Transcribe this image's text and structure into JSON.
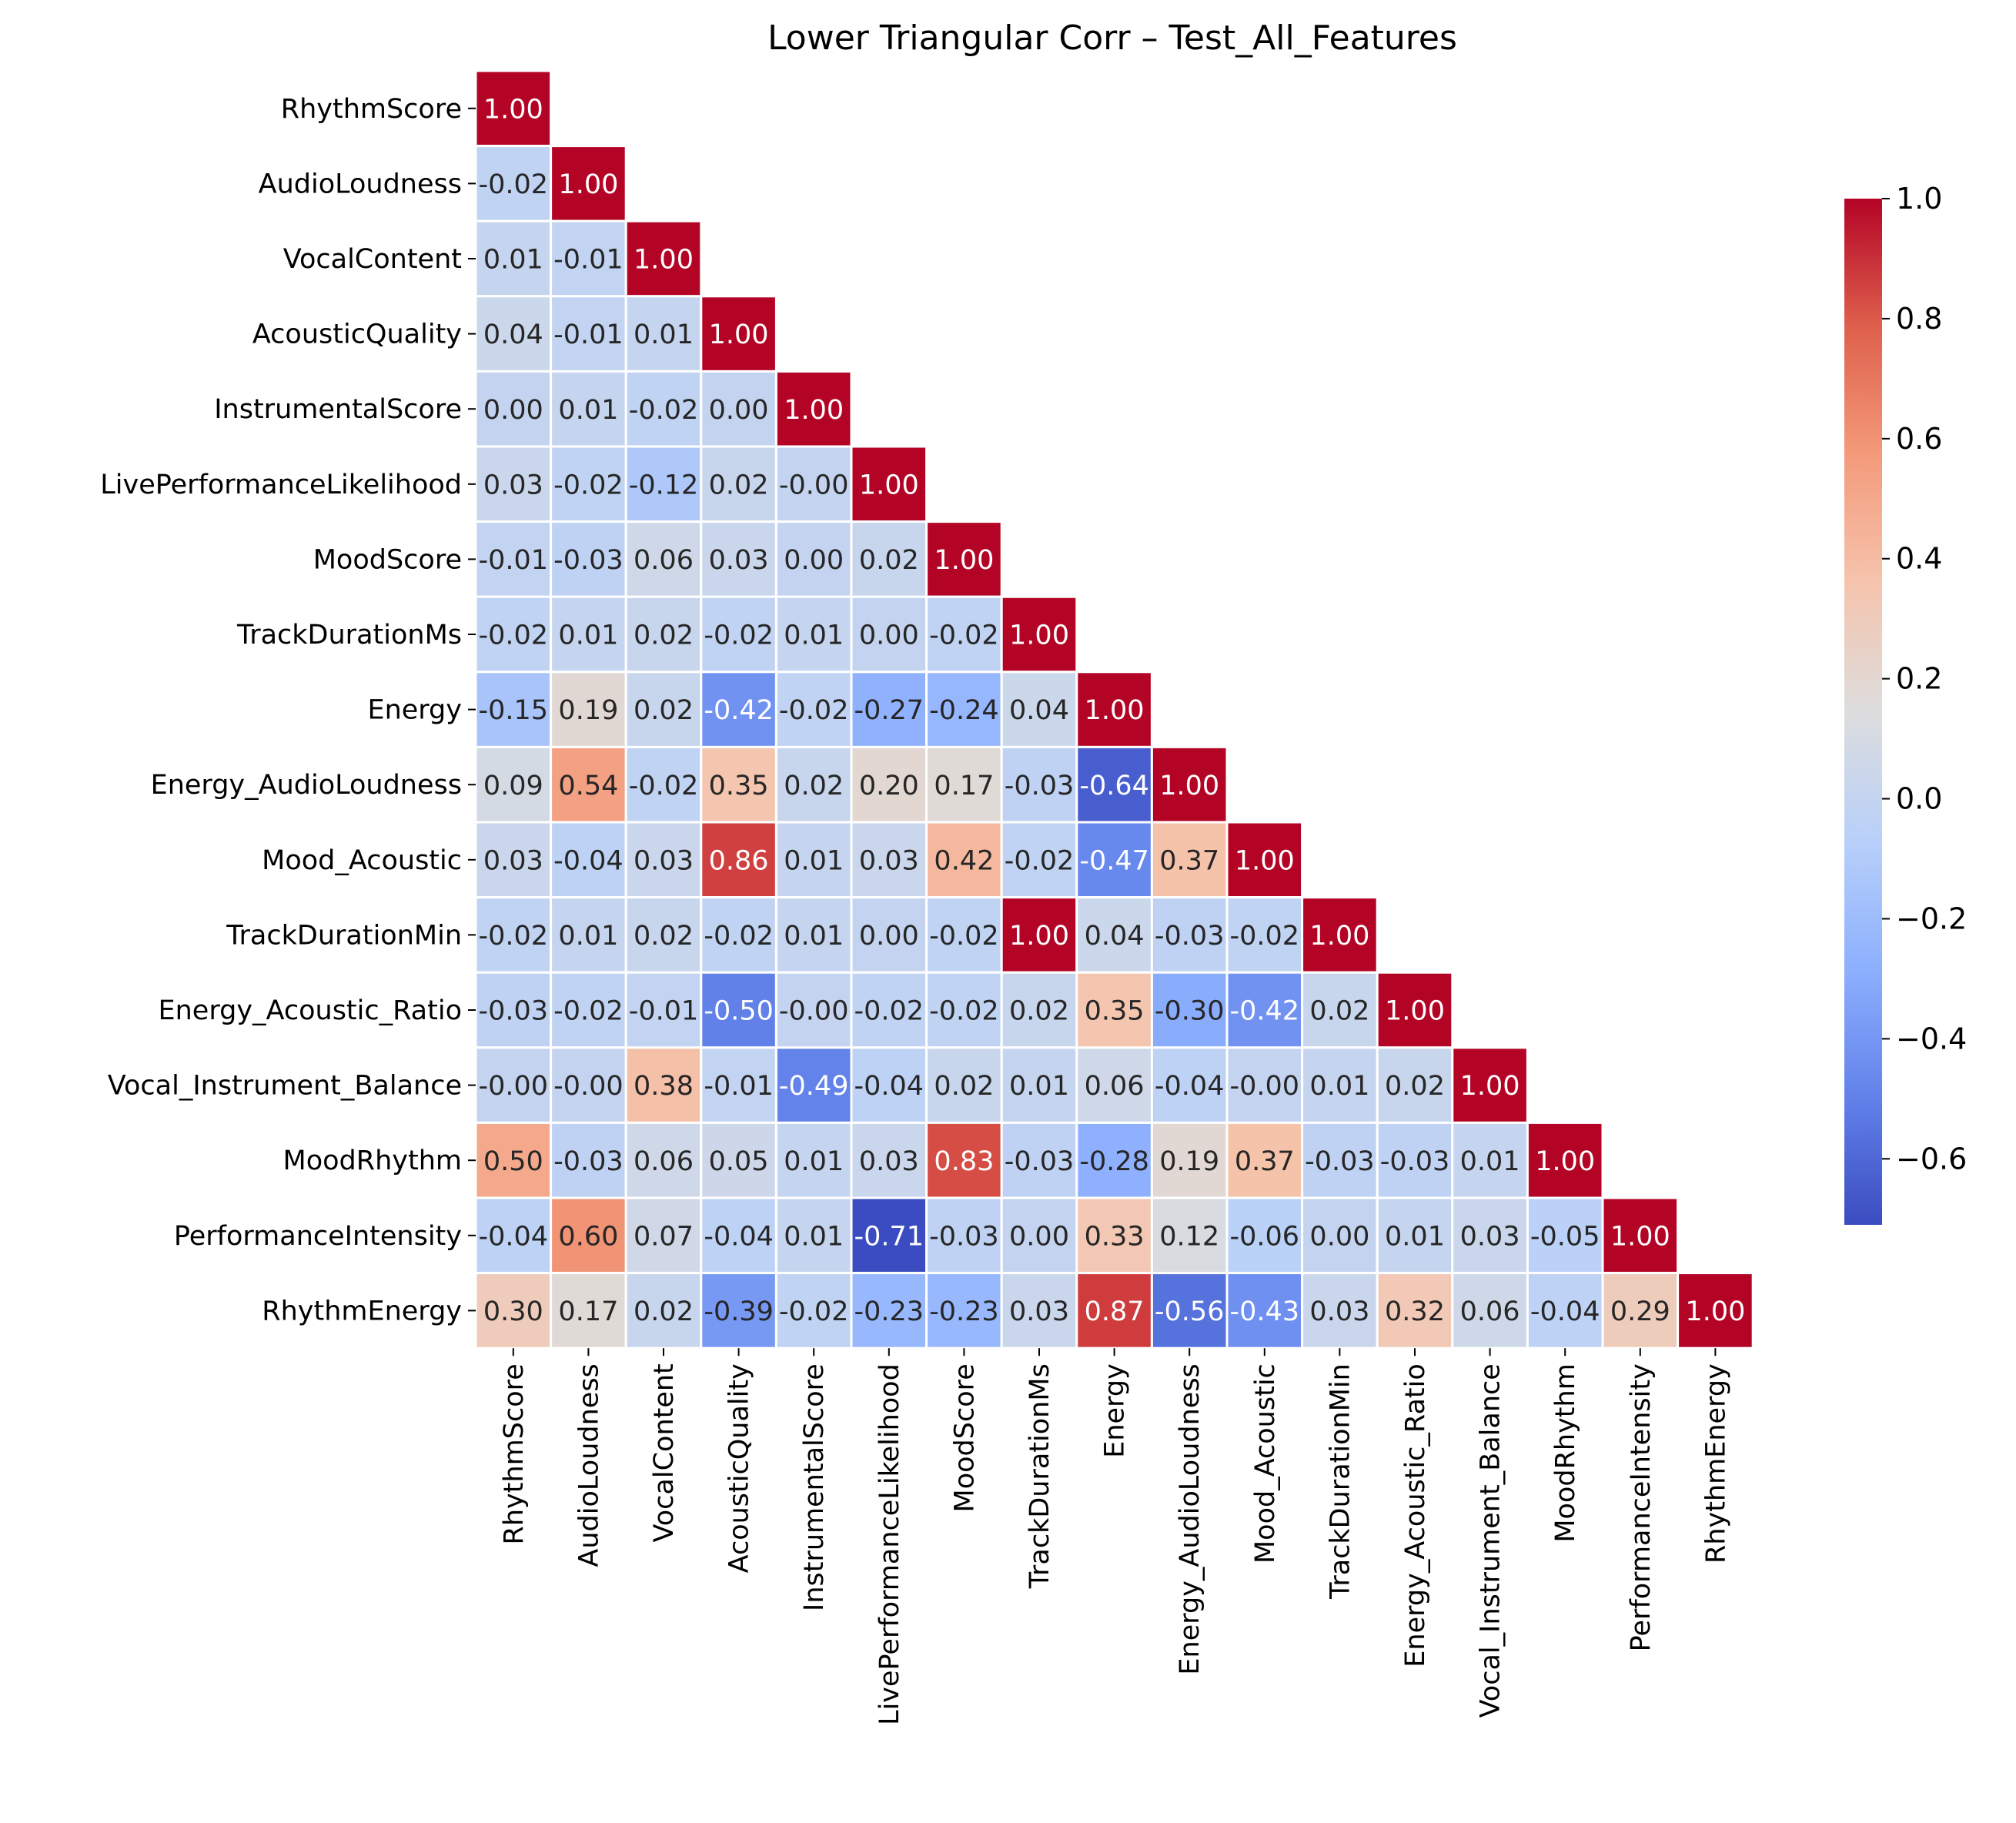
{
  "chart_data": {
    "type": "heatmap",
    "title": "Lower Triangular Corr – Test_All_Features",
    "labels": [
      "RhythmScore",
      "AudioLoudness",
      "VocalContent",
      "AcousticQuality",
      "InstrumentalScore",
      "LivePerformanceLikelihood",
      "MoodScore",
      "TrackDurationMs",
      "Energy",
      "Energy_AudioLoudness",
      "Mood_Acoustic",
      "TrackDurationMin",
      "Energy_Acoustic_Ratio",
      "Vocal_Instrument_Balance",
      "MoodRhythm",
      "PerformanceIntensity",
      "RhythmEnergy"
    ],
    "matrix_lower": [
      [
        1.0
      ],
      [
        -0.02,
        1.0
      ],
      [
        0.01,
        -0.01,
        1.0
      ],
      [
        0.04,
        -0.01,
        0.01,
        1.0
      ],
      [
        0.0,
        0.01,
        -0.02,
        0.0,
        1.0
      ],
      [
        0.03,
        -0.02,
        -0.12,
        0.02,
        -0.0,
        1.0
      ],
      [
        -0.01,
        -0.03,
        0.06,
        0.03,
        0.0,
        0.02,
        1.0
      ],
      [
        -0.02,
        0.01,
        0.02,
        -0.02,
        0.01,
        0.0,
        -0.02,
        1.0
      ],
      [
        -0.15,
        0.19,
        0.02,
        -0.42,
        -0.02,
        -0.27,
        -0.24,
        0.04,
        1.0
      ],
      [
        0.09,
        0.54,
        -0.02,
        0.35,
        0.02,
        0.2,
        0.17,
        -0.03,
        -0.64,
        1.0
      ],
      [
        0.03,
        -0.04,
        0.03,
        0.86,
        0.01,
        0.03,
        0.42,
        -0.02,
        -0.47,
        0.37,
        1.0
      ],
      [
        -0.02,
        0.01,
        0.02,
        -0.02,
        0.01,
        0.0,
        -0.02,
        1.0,
        0.04,
        -0.03,
        -0.02,
        1.0
      ],
      [
        -0.03,
        -0.02,
        -0.01,
        -0.5,
        -0.0,
        -0.02,
        -0.02,
        0.02,
        0.35,
        -0.3,
        -0.42,
        0.02,
        1.0
      ],
      [
        -0.0,
        -0.0,
        0.38,
        -0.01,
        -0.49,
        -0.04,
        0.02,
        0.01,
        0.06,
        -0.04,
        -0.0,
        0.01,
        0.02,
        1.0
      ],
      [
        0.5,
        -0.03,
        0.06,
        0.05,
        0.01,
        0.03,
        0.83,
        -0.03,
        -0.28,
        0.19,
        0.37,
        -0.03,
        -0.03,
        0.01,
        1.0
      ],
      [
        -0.04,
        0.6,
        0.07,
        -0.04,
        0.01,
        -0.71,
        -0.03,
        0.0,
        0.33,
        0.12,
        -0.06,
        0.0,
        0.01,
        0.03,
        -0.05,
        1.0
      ],
      [
        0.3,
        0.17,
        0.02,
        -0.39,
        -0.02,
        -0.23,
        -0.23,
        0.03,
        0.87,
        -0.56,
        -0.43,
        0.03,
        0.32,
        0.06,
        -0.04,
        0.29,
        1.0
      ]
    ],
    "value_format": "two decimals",
    "colormap": "coolwarm",
    "vmin": -0.71,
    "vmax": 1.0,
    "colorbar": {
      "ticks": [
        1.0,
        0.8,
        0.6,
        0.4,
        0.2,
        0.0,
        -0.2,
        -0.4,
        -0.6
      ],
      "tick_labels": [
        "1.0",
        "0.8",
        "0.6",
        "0.4",
        "0.2",
        "0.0",
        "−0.2",
        "−0.4",
        "−0.6"
      ],
      "placement": "right"
    },
    "grid": false,
    "cell_gridlines": "white"
  }
}
